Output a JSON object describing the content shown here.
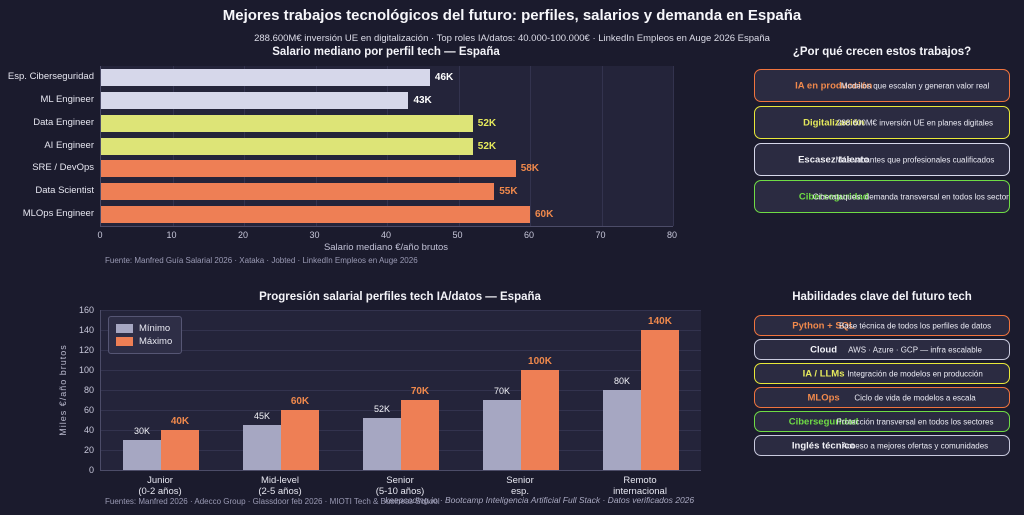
{
  "header": {
    "title": "Mejores trabajos tecnológicos del futuro: perfiles, salarios y demanda en España",
    "subtitle": "288.600M€ inversión UE en digitalización · Top roles IA/datos: 40.000-100.000€ · LinkedIn Empleos en Auge 2026 España"
  },
  "colors": {
    "background": "#1b1b2d",
    "panel": "#24243a",
    "card_bg": "#2b2b41",
    "orange": "#ee7f55",
    "yellow": "#dde477",
    "yellow_text": "#e5e95c",
    "lavender": "#d6d7ea",
    "green": "#6fdc45",
    "min_gray": "#a6a7c2",
    "white_text": "#f2f2f7"
  },
  "chart_data": [
    {
      "type": "bar",
      "orientation": "horizontal",
      "title": "Salario mediano por perfil tech — España",
      "categories": [
        "Esp. Ciberseguridad",
        "ML Engineer",
        "Data Engineer",
        "AI Engineer",
        "SRE / DevOps",
        "Data Scientist",
        "MLOps Engineer"
      ],
      "values": [
        46,
        43,
        52,
        52,
        58,
        55,
        60
      ],
      "value_labels": [
        "46K",
        "43K",
        "52K",
        "52K",
        "58K",
        "55K",
        "60K"
      ],
      "bar_colors": [
        "#d6d7ea",
        "#d6d7ea",
        "#dde477",
        "#dde477",
        "#ee7f55",
        "#ee7f55",
        "#ee7f55"
      ],
      "label_colors": [
        "#ffffff",
        "#ffffff",
        "#e5e95c",
        "#e5e95c",
        "#f0894c",
        "#f0894c",
        "#f0894c"
      ],
      "xlabel": "Salario mediano €/año brutos",
      "xlim": [
        0,
        80
      ],
      "xticks": [
        0,
        10,
        20,
        30,
        40,
        50,
        60,
        70,
        80
      ],
      "grid": true,
      "source": "Fuente: Manfred Guía Salarial 2026 · Xataka · Jobted · LinkedIn Empleos en Auge 2026"
    },
    {
      "type": "bar",
      "orientation": "vertical",
      "grouped": true,
      "title": "Progresión salarial perfiles tech IA/datos — España",
      "categories": [
        [
          "Junior",
          "(0-2 años)"
        ],
        [
          "Mid-level",
          "(2-5 años)"
        ],
        [
          "Senior",
          "(5-10 años)"
        ],
        [
          "Senior",
          "esp."
        ],
        [
          "Remoto",
          "internacional"
        ]
      ],
      "series": [
        {
          "name": "Mínimo",
          "color": "#a6a7c2",
          "values": [
            30,
            45,
            52,
            70,
            80
          ],
          "value_labels": [
            "30K",
            "45K",
            "52K",
            "70K",
            "80K"
          ],
          "label_color": "#f2f2f7",
          "label_bold": false
        },
        {
          "name": "Máximo",
          "color": "#ee7f55",
          "values": [
            40,
            60,
            70,
            100,
            140
          ],
          "value_labels": [
            "40K",
            "60K",
            "70K",
            "100K",
            "140K"
          ],
          "label_color": "#f0894c",
          "label_bold": true
        }
      ],
      "ylabel": "Miles €/año brutos",
      "ylim": [
        0,
        160
      ],
      "yticks": [
        0,
        20,
        40,
        60,
        80,
        100,
        120,
        140,
        160
      ],
      "grid": true,
      "legend_position": "upper left"
    }
  ],
  "reasons_panel": {
    "title": "¿Por qué crecen estos trabajos?",
    "items": [
      {
        "name": "IA en producción",
        "desc": "Modelos que escalan y generan valor real",
        "color": "#f0743e",
        "name_color": "#f0894c"
      },
      {
        "name": "Digitalización",
        "desc": "288.600M€ inversión UE en planes digitales",
        "color": "#e8e839",
        "name_color": "#e5e95c"
      },
      {
        "name": "Escasez talento",
        "desc": "Más vacantes que profesionales cualificados",
        "color": "#d6d7ea",
        "name_color": "#f2f2f7"
      },
      {
        "name": "Ciberseguridad",
        "desc": "Ciberataques: demanda transversal en todos los sectores",
        "color": "#6fdc45",
        "name_color": "#6fdc45"
      }
    ]
  },
  "skills_panel": {
    "title": "Habilidades clave del futuro tech",
    "items": [
      {
        "name": "Python + SQL",
        "desc": "Base técnica de todos los perfiles de datos",
        "color": "#f0743e",
        "name_color": "#f0894c"
      },
      {
        "name": "Cloud",
        "desc": "AWS · Azure · GCP — infra escalable",
        "color": "#c9cade",
        "name_color": "#f2f2f7"
      },
      {
        "name": "IA / LLMs",
        "desc": "Integración de modelos en producción",
        "color": "#e8e839",
        "name_color": "#e5e95c"
      },
      {
        "name": "MLOps",
        "desc": "Ciclo de vida de modelos a escala",
        "color": "#f0743e",
        "name_color": "#f0894c"
      },
      {
        "name": "Ciberseguridad",
        "desc": "Protección transversal en todos los sectores",
        "color": "#6fdc45",
        "name_color": "#6fdc45"
      },
      {
        "name": "Inglés técnico",
        "desc": "Acceso a mejores ofertas y comunidades",
        "color": "#c9cade",
        "name_color": "#f2f2f7"
      }
    ]
  },
  "footer": {
    "sources": "Fuentes: Manfred 2026 · Adecco Group · Glassdoor feb 2026 · MIOTI Tech & Business School",
    "watermark": "keepcoding.io · Bootcamp Inteligencia Artificial Full Stack · Datos verificados 2026"
  }
}
